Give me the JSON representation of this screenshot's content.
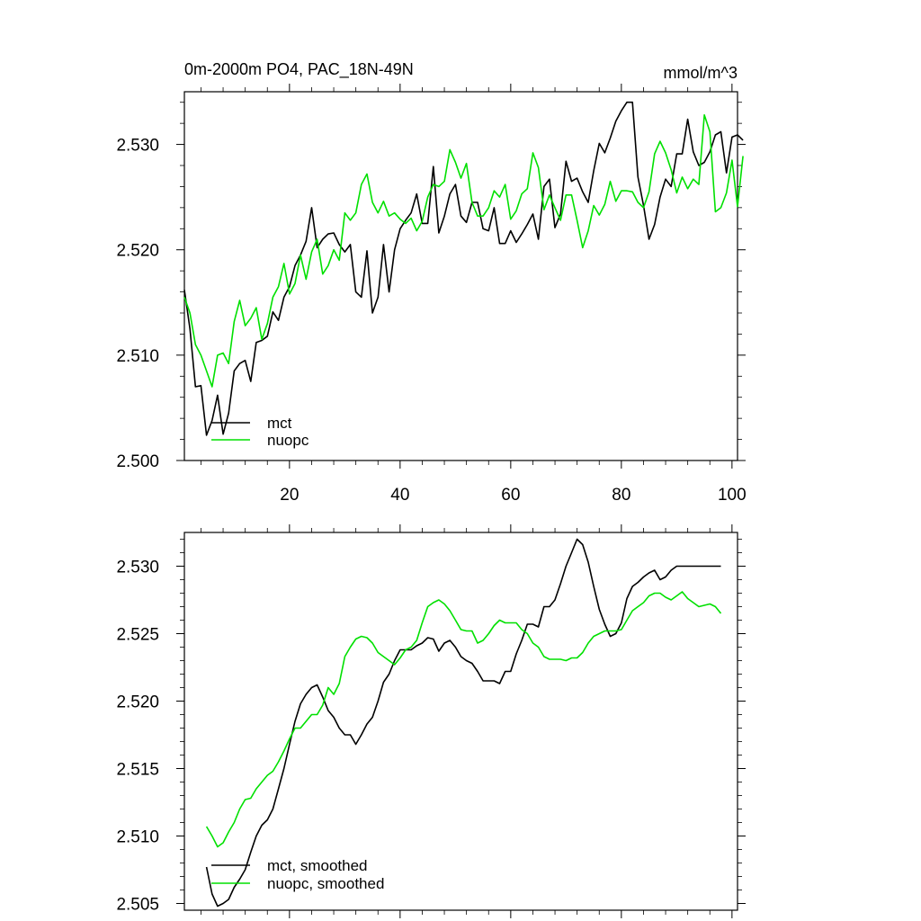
{
  "colors": {
    "mct": "#000000",
    "nuopc": "#00e000",
    "frame": "#000000"
  },
  "chart_data": [
    {
      "type": "line",
      "title": "0m-2000m PO4, PAC_18N-49N",
      "units": "mmol/m^3",
      "xlabel": "",
      "ylabel": "",
      "xlim": [
        1,
        101
      ],
      "ylim": [
        2.5,
        2.535
      ],
      "xticks": [
        20,
        40,
        60,
        80,
        100
      ],
      "xtick_labels": [
        "20",
        "40",
        "60",
        "80",
        "100"
      ],
      "yticks": [
        2.5,
        2.51,
        2.52,
        2.53
      ],
      "ytick_labels": [
        "2.500",
        "2.510",
        "2.520",
        "2.530"
      ],
      "legend": [
        "mct",
        "nuopc"
      ],
      "legend_position": "bottom-left",
      "series": [
        {
          "name": "mct",
          "color": "#000000",
          "values": [
            2.5162,
            2.5125,
            2.507,
            2.5071,
            2.5024,
            2.5038,
            2.5062,
            2.5025,
            2.5045,
            2.5085,
            2.5092,
            2.5095,
            2.5075,
            2.5112,
            2.5114,
            2.5118,
            2.5141,
            2.5133,
            2.5155,
            2.5165,
            2.5185,
            2.5195,
            2.5208,
            2.524,
            2.5202,
            2.521,
            2.5215,
            2.5216,
            2.5205,
            2.5198,
            2.5205,
            2.516,
            2.5155,
            2.5199,
            2.514,
            2.5155,
            2.5205,
            2.516,
            2.52,
            2.522,
            2.5228,
            2.5235,
            2.5253,
            2.5225,
            2.5225,
            2.5279,
            2.5216,
            2.5232,
            2.5253,
            2.5262,
            2.5232,
            2.5226,
            2.5245,
            2.5245,
            2.522,
            2.5218,
            2.524,
            2.5206,
            2.5206,
            2.5218,
            2.5207,
            2.5215,
            2.5224,
            2.5234,
            2.521,
            2.526,
            2.5267,
            2.5221,
            2.5234,
            2.5284,
            2.5265,
            2.5268,
            2.5255,
            2.5245,
            2.5275,
            2.5301,
            2.5292,
            2.5306,
            2.5322,
            2.5332,
            2.534,
            2.534,
            2.5269,
            2.5242,
            2.521,
            2.5224,
            2.525,
            2.5267,
            2.526,
            2.5291,
            2.5291,
            2.5324,
            2.5293,
            2.528,
            2.5283,
            2.5293,
            2.5309,
            2.5312,
            2.5273,
            2.5307,
            2.5309,
            2.5304
          ]
        },
        {
          "name": "nuopc",
          "color": "#00e000",
          "values": [
            2.5155,
            2.514,
            2.511,
            2.51,
            2.5085,
            2.507,
            2.51,
            2.5102,
            2.5092,
            2.5132,
            2.5152,
            2.5128,
            2.5135,
            2.5145,
            2.5115,
            2.513,
            2.5155,
            2.5165,
            2.5187,
            2.5158,
            2.5168,
            2.5195,
            2.5172,
            2.5198,
            2.521,
            2.5177,
            2.5185,
            2.52,
            2.519,
            2.5235,
            2.5228,
            2.5235,
            2.5262,
            2.5272,
            2.5245,
            2.5235,
            2.5246,
            2.5232,
            2.5235,
            2.5229,
            2.5225,
            2.523,
            2.5218,
            2.5227,
            2.525,
            2.5262,
            2.526,
            2.5265,
            2.5295,
            2.5283,
            2.5268,
            2.5282,
            2.5245,
            2.5232,
            2.5232,
            2.524,
            2.5256,
            2.525,
            2.5262,
            2.5229,
            2.5237,
            2.5253,
            2.5258,
            2.5292,
            2.5278,
            2.5238,
            2.5252,
            2.524,
            2.5228,
            2.5252,
            2.5252,
            2.5228,
            2.5202,
            2.5218,
            2.5242,
            2.5233,
            2.5243,
            2.5265,
            2.5246,
            2.5256,
            2.5256,
            2.5255,
            2.5245,
            2.524,
            2.5255,
            2.5291,
            2.5303,
            2.5292,
            2.5276,
            2.5254,
            2.5269,
            2.5258,
            2.5267,
            2.5262,
            2.5328,
            2.5312,
            2.5236,
            2.524,
            2.5254,
            2.5285,
            2.5241,
            2.5289
          ]
        }
      ]
    },
    {
      "type": "line",
      "title": "",
      "xlabel": "",
      "ylabel": "",
      "xlim": [
        1,
        101
      ],
      "ylim": [
        2.5045,
        2.5325
      ],
      "xticks": [
        20,
        40,
        60,
        80,
        100
      ],
      "xtick_labels": [],
      "yticks": [
        2.505,
        2.51,
        2.515,
        2.52,
        2.525,
        2.53
      ],
      "ytick_labels": [
        "2.505",
        "2.510",
        "2.515",
        "2.520",
        "2.525",
        "2.530"
      ],
      "legend": [
        "mct, smoothed",
        "nuopc, smoothed"
      ],
      "legend_position": "bottom-left",
      "series": [
        {
          "name": "mct, smoothed",
          "color": "#000000",
          "x": [
            5,
            6,
            7,
            8,
            9,
            10,
            11,
            12,
            13,
            14,
            15,
            16,
            17,
            18,
            19,
            20,
            21,
            22,
            23,
            24,
            25,
            26,
            27,
            28,
            29,
            30,
            31,
            32,
            33,
            34,
            35,
            36,
            37,
            38,
            39,
            40,
            41,
            42,
            43,
            44,
            45,
            46,
            47,
            48,
            49,
            50,
            51,
            52,
            53,
            54,
            55,
            56,
            57,
            58,
            59,
            60,
            61,
            62,
            63,
            64,
            65,
            66,
            67,
            68,
            69,
            70,
            71,
            72,
            73,
            74,
            75,
            76,
            77,
            78,
            79,
            80,
            81,
            82,
            83,
            84,
            85,
            86,
            87,
            88,
            89,
            90,
            91,
            92,
            93,
            94,
            95,
            96,
            97,
            98
          ],
          "values": [
            2.5077,
            2.5057,
            2.5048,
            2.505,
            2.5053,
            2.5062,
            2.5068,
            2.5075,
            2.5088,
            2.51,
            2.5108,
            2.5112,
            2.512,
            2.5135,
            2.515,
            2.5168,
            2.5185,
            2.5198,
            2.5205,
            2.521,
            2.5212,
            2.5203,
            2.5193,
            2.5188,
            2.518,
            2.5175,
            2.5175,
            2.5168,
            2.5175,
            2.5183,
            2.5188,
            2.52,
            2.5214,
            2.522,
            2.523,
            2.5238,
            2.5238,
            2.5238,
            2.5241,
            2.5243,
            2.5247,
            2.5246,
            2.5237,
            2.5243,
            2.5245,
            2.524,
            2.5233,
            2.523,
            2.5228,
            2.5222,
            2.5215,
            2.5215,
            2.5215,
            2.5213,
            2.5222,
            2.5222,
            2.5235,
            2.5245,
            2.5257,
            2.5257,
            2.5255,
            2.527,
            2.527,
            2.5275,
            2.5287,
            2.53,
            2.531,
            2.532,
            2.5316,
            2.5303,
            2.5285,
            2.5268,
            2.5257,
            2.5248,
            2.525,
            2.5258,
            2.5276,
            2.5285,
            2.5288,
            2.5292,
            2.5295,
            2.5297,
            2.529,
            2.5292,
            2.5297,
            2.53,
            2.53,
            2.53,
            2.53,
            2.53,
            2.53,
            2.53,
            2.53,
            2.53
          ]
        },
        {
          "name": "nuopc, smoothed",
          "color": "#00e000",
          "x": [
            5,
            6,
            7,
            8,
            9,
            10,
            11,
            12,
            13,
            14,
            15,
            16,
            17,
            18,
            19,
            20,
            21,
            22,
            23,
            24,
            25,
            26,
            27,
            28,
            29,
            30,
            31,
            32,
            33,
            34,
            35,
            36,
            37,
            38,
            39,
            40,
            41,
            42,
            43,
            44,
            45,
            46,
            47,
            48,
            49,
            50,
            51,
            52,
            53,
            54,
            55,
            56,
            57,
            58,
            59,
            60,
            61,
            62,
            63,
            64,
            65,
            66,
            67,
            68,
            69,
            70,
            71,
            72,
            73,
            74,
            75,
            76,
            77,
            78,
            79,
            80,
            81,
            82,
            83,
            84,
            85,
            86,
            87,
            88,
            89,
            90,
            91,
            92,
            93,
            94,
            95,
            96,
            97,
            98
          ],
          "values": [
            2.5107,
            2.51,
            2.5092,
            2.5095,
            2.5103,
            2.511,
            2.512,
            2.5127,
            2.5128,
            2.5135,
            2.514,
            2.5145,
            2.5148,
            2.5155,
            2.5163,
            2.5172,
            2.518,
            2.518,
            2.5185,
            2.519,
            2.519,
            2.5197,
            2.521,
            2.5205,
            2.5213,
            2.5233,
            2.524,
            2.5246,
            2.5248,
            2.5247,
            2.5243,
            2.5236,
            2.5233,
            2.523,
            2.5227,
            2.5232,
            2.5238,
            2.524,
            2.5245,
            2.5258,
            2.527,
            2.5273,
            2.5275,
            2.5272,
            2.5267,
            2.526,
            2.5253,
            2.5252,
            2.5252,
            2.5243,
            2.5245,
            2.525,
            2.5256,
            2.526,
            2.5258,
            2.5258,
            2.5258,
            2.5253,
            2.525,
            2.5243,
            2.524,
            2.5233,
            2.5231,
            2.5231,
            2.5231,
            2.523,
            2.5232,
            2.5232,
            2.5236,
            2.5243,
            2.5248,
            2.525,
            2.5252,
            2.5252,
            2.5252,
            2.5253,
            2.526,
            2.5267,
            2.527,
            2.5273,
            2.5278,
            2.528,
            2.528,
            2.5277,
            2.5275,
            2.5278,
            2.5281,
            2.5276,
            2.5273,
            2.527,
            2.5271,
            2.5272,
            2.527,
            2.5265
          ]
        }
      ]
    }
  ]
}
